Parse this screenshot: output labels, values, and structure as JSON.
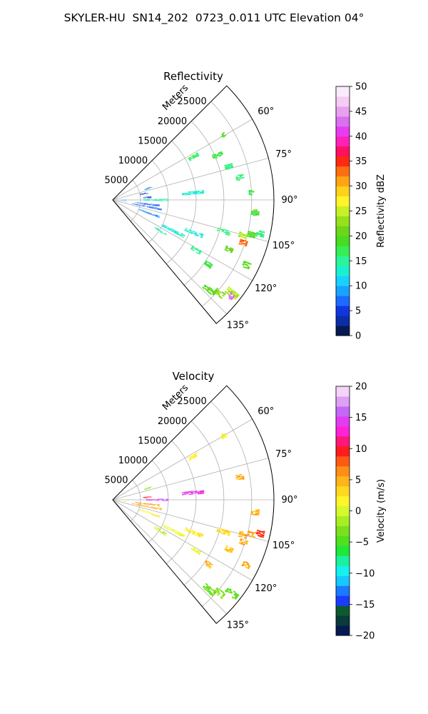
{
  "suptitle": "SKYLER-HU  SN14_202  0723_0.011 UTC Elevation 04°",
  "chart_data": [
    {
      "type": "heatmap",
      "subtype": "polar-sector-ppi",
      "title": "Reflectivity",
      "radial_axis_label": "Meters",
      "radial_ticks": [
        5000,
        10000,
        15000,
        20000,
        25000
      ],
      "radial_tick_labels": [
        "5000",
        "10000",
        "15000",
        "20000",
        "25000"
      ],
      "radial_max": 29000,
      "azimuth_range_deg": [
        45,
        140
      ],
      "azimuth_ticks": [
        60,
        75,
        90,
        105,
        120,
        135
      ],
      "azimuth_tick_labels": [
        "60°",
        "75°",
        "90°",
        "105°",
        "120°",
        "135°"
      ],
      "grid": true,
      "colorbar": {
        "label": "Reflectivity dBZ",
        "min": 0,
        "max": 50,
        "ticks": [
          0,
          5,
          10,
          15,
          20,
          25,
          30,
          35,
          40,
          45,
          50
        ],
        "tick_labels": [
          "0",
          "5",
          "10",
          "15",
          "20",
          "25",
          "30",
          "35",
          "40",
          "45",
          "50"
        ],
        "colors": [
          "#061a52",
          "#0a2ea8",
          "#1136e0",
          "#1b6bff",
          "#1aa2ff",
          "#1ad0ff",
          "#1af0d0",
          "#2af59a",
          "#35ee55",
          "#48dc22",
          "#6bd61a",
          "#96e01c",
          "#c8f028",
          "#fff52a",
          "#ffd21c",
          "#ffa414",
          "#ff6e12",
          "#ff2a12",
          "#ff1060",
          "#ff22b8",
          "#e83cf0",
          "#d870f0",
          "#e8a0f0",
          "#f4ccf4",
          "#fbeafb"
        ]
      },
      "echoes": [
        {
          "az": 60,
          "r0": 22500,
          "r1": 23500,
          "value": 19
        },
        {
          "az": 62,
          "r0": 15500,
          "r1": 17500,
          "value": 17
        },
        {
          "az": 67,
          "r0": 19500,
          "r1": 21500,
          "value": 18
        },
        {
          "az": 72,
          "r0": 6000,
          "r1": 7500,
          "value": 9
        },
        {
          "az": 74,
          "r0": 21000,
          "r1": 22500,
          "value": 16
        },
        {
          "az": 79,
          "r0": 5000,
          "r1": 6500,
          "value": 3
        },
        {
          "az": 80,
          "r0": 22500,
          "r1": 24000,
          "value": 17
        },
        {
          "az": 85,
          "r0": 12500,
          "r1": 16500,
          "value": 13
        },
        {
          "az": 86,
          "r0": 5500,
          "r1": 7000,
          "value": 4
        },
        {
          "az": 87,
          "r0": 24500,
          "r1": 25500,
          "value": 18
        },
        {
          "az": 90,
          "r0": 5500,
          "r1": 10000,
          "value": 14
        },
        {
          "az": 91,
          "r0": 1500,
          "r1": 2500,
          "value": 8
        },
        {
          "az": 95,
          "r0": 25000,
          "r1": 26500,
          "value": 19
        },
        {
          "az": 97,
          "r0": 4000,
          "r1": 8500,
          "value": 6
        },
        {
          "az": 99,
          "r0": 1000,
          "r1": 2500,
          "value": 14
        },
        {
          "az": 101,
          "r0": 3500,
          "r1": 9000,
          "value": 7
        },
        {
          "az": 103,
          "r0": 26500,
          "r1": 28000,
          "value": 16
        },
        {
          "az": 104,
          "r0": 25000,
          "r1": 26500,
          "value": 19
        },
        {
          "az": 105,
          "r0": 23500,
          "r1": 25000,
          "value": 24
        },
        {
          "az": 106,
          "r0": 19500,
          "r1": 22000,
          "value": 16
        },
        {
          "az": 108,
          "r0": 24000,
          "r1": 25500,
          "value": 33
        },
        {
          "az": 110,
          "r0": 5000,
          "r1": 9000,
          "value": 8
        },
        {
          "az": 112,
          "r0": 14000,
          "r1": 17500,
          "value": 13
        },
        {
          "az": 113,
          "r0": 22000,
          "r1": 23500,
          "value": 21
        },
        {
          "az": 116,
          "r0": 26000,
          "r1": 27500,
          "value": 20
        },
        {
          "az": 117,
          "r0": 10000,
          "r1": 14500,
          "value": 13
        },
        {
          "az": 121,
          "r0": 16500,
          "r1": 18500,
          "value": 15
        },
        {
          "az": 123,
          "r0": 9000,
          "r1": 11500,
          "value": 14
        },
        {
          "az": 124,
          "r0": 20000,
          "r1": 21500,
          "value": 18
        },
        {
          "az": 128,
          "r0": 26000,
          "r1": 28500,
          "value": 24
        },
        {
          "az": 129,
          "r0": 27000,
          "r1": 28000,
          "value": 42
        },
        {
          "az": 131,
          "r0": 24500,
          "r1": 26500,
          "value": 22
        },
        {
          "az": 133,
          "r0": 22500,
          "r1": 25000,
          "value": 20
        }
      ]
    },
    {
      "type": "heatmap",
      "subtype": "polar-sector-ppi",
      "title": "Velocity",
      "radial_axis_label": "Meters",
      "radial_ticks": [
        5000,
        10000,
        15000,
        20000,
        25000
      ],
      "radial_tick_labels": [
        "5000",
        "10000",
        "15000",
        "20000",
        "25000"
      ],
      "radial_max": 29000,
      "azimuth_range_deg": [
        45,
        140
      ],
      "azimuth_ticks": [
        60,
        75,
        90,
        105,
        120,
        135
      ],
      "azimuth_tick_labels": [
        "60°",
        "75°",
        "90°",
        "105°",
        "120°",
        "135°"
      ],
      "grid": true,
      "colorbar": {
        "label": "Velocity (m/s)",
        "min": -20,
        "max": 20,
        "ticks": [
          -20,
          -15,
          -10,
          -5,
          0,
          5,
          10,
          15,
          20
        ],
        "tick_labels": [
          "−20",
          "−15",
          "−10",
          "−5",
          "0",
          "5",
          "10",
          "15",
          "20"
        ],
        "colors": [
          "#061a52",
          "#0a3a3a",
          "#0c5a30",
          "#1a3cff",
          "#1b7aff",
          "#16c8ff",
          "#16f0f0",
          "#1af0a0",
          "#1ee83a",
          "#4fe01e",
          "#7be01e",
          "#a8ee24",
          "#d6f82e",
          "#fff52a",
          "#ffd820",
          "#ffb41a",
          "#ff8e16",
          "#ff5a14",
          "#ff1c1c",
          "#ff1878",
          "#ff22d6",
          "#e23cf2",
          "#c468f6",
          "#dea0f6",
          "#f4d4f8"
        ]
      },
      "echoes": [
        {
          "az": 60,
          "r0": 22500,
          "r1": 23500,
          "value": 1
        },
        {
          "az": 62,
          "r0": 15500,
          "r1": 17500,
          "value": 2
        },
        {
          "az": 72,
          "r0": 6000,
          "r1": 7500,
          "value": -2
        },
        {
          "az": 80,
          "r0": 22500,
          "r1": 24000,
          "value": 5
        },
        {
          "az": 85,
          "r0": 12500,
          "r1": 16500,
          "value": 14
        },
        {
          "az": 86,
          "r0": 5500,
          "r1": 7000,
          "value": 10
        },
        {
          "az": 90,
          "r0": 6000,
          "r1": 10000,
          "value": 15
        },
        {
          "az": 91,
          "r0": 1500,
          "r1": 2500,
          "value": 0
        },
        {
          "az": 95,
          "r0": 25000,
          "r1": 26500,
          "value": 5
        },
        {
          "az": 97,
          "r0": 4000,
          "r1": 8500,
          "value": 6
        },
        {
          "az": 99,
          "r0": 1000,
          "r1": 2500,
          "value": -1
        },
        {
          "az": 101,
          "r0": 3500,
          "r1": 9000,
          "value": 5
        },
        {
          "az": 103,
          "r0": 26500,
          "r1": 28000,
          "value": 9
        },
        {
          "az": 104,
          "r0": 25000,
          "r1": 26500,
          "value": 5
        },
        {
          "az": 105,
          "r0": 23500,
          "r1": 25000,
          "value": 5
        },
        {
          "az": 106,
          "r0": 19500,
          "r1": 22000,
          "value": 3
        },
        {
          "az": 108,
          "r0": 24000,
          "r1": 25500,
          "value": 5
        },
        {
          "az": 110,
          "r0": 5000,
          "r1": 9000,
          "value": 2
        },
        {
          "az": 112,
          "r0": 14000,
          "r1": 17500,
          "value": 2
        },
        {
          "az": 113,
          "r0": 22000,
          "r1": 23500,
          "value": 4
        },
        {
          "az": 116,
          "r0": 26000,
          "r1": 27500,
          "value": 5
        },
        {
          "az": 117,
          "r0": 10000,
          "r1": 14500,
          "value": 1
        },
        {
          "az": 121,
          "r0": 16500,
          "r1": 18500,
          "value": 1
        },
        {
          "az": 123,
          "r0": 9000,
          "r1": 11500,
          "value": -1
        },
        {
          "az": 124,
          "r0": 20000,
          "r1": 21500,
          "value": 5
        },
        {
          "az": 128,
          "r0": 26000,
          "r1": 28500,
          "value": -4
        },
        {
          "az": 131,
          "r0": 24500,
          "r1": 26500,
          "value": -3
        },
        {
          "az": 133,
          "r0": 22500,
          "r1": 25000,
          "value": -4
        }
      ]
    }
  ]
}
